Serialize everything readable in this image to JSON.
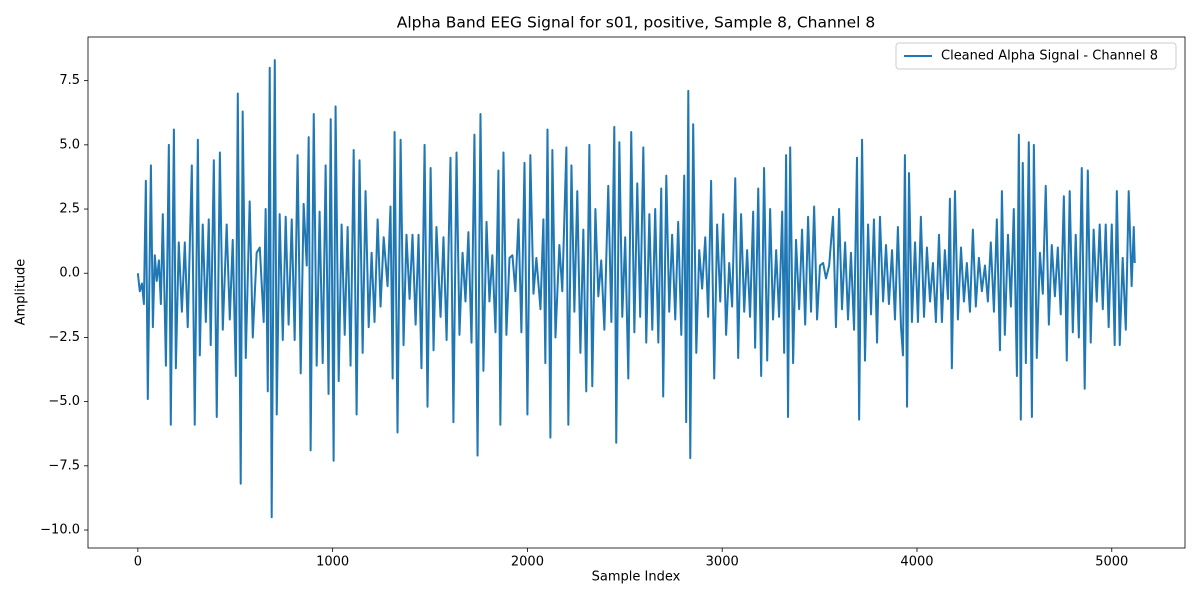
{
  "chart_data": {
    "type": "line",
    "title": "Alpha Band EEG Signal for s01, positive, Sample 8, Channel 8",
    "x_label": "Sample Index",
    "y_label": "Amplitude",
    "xlim": [
      -256,
      5376
    ],
    "ylim": [
      -10.7,
      9.2
    ],
    "xticks": [
      0,
      1000,
      2000,
      3000,
      4000,
      5000
    ],
    "yticks": [
      {
        "value": -10,
        "label": "−10.0"
      },
      {
        "value": -7.5,
        "label": "−7.5"
      },
      {
        "value": -5,
        "label": "−5.0"
      },
      {
        "value": -2.5,
        "label": "−2.5"
      },
      {
        "value": 0,
        "label": "0.0"
      },
      2.5,
      {
        "value": 5,
        "label": "5.0"
      },
      7.5
    ],
    "legend": "upper right",
    "x": [
      0,
      10,
      21,
      31,
      41,
      51,
      67,
      77,
      87,
      97,
      108,
      118,
      128,
      144,
      159,
      169,
      185,
      195,
      210,
      226,
      241,
      256,
      277,
      292,
      308,
      318,
      333,
      349,
      364,
      374,
      390,
      405,
      421,
      436,
      456,
      472,
      487,
      503,
      513,
      528,
      538,
      554,
      574,
      590,
      610,
      626,
      646,
      656,
      667,
      677,
      687,
      703,
      713,
      728,
      744,
      759,
      774,
      790,
      805,
      820,
      836,
      851,
      867,
      877,
      887,
      903,
      918,
      933,
      949,
      964,
      979,
      990,
      1005,
      1015,
      1031,
      1046,
      1062,
      1077,
      1092,
      1108,
      1123,
      1138,
      1154,
      1169,
      1185,
      1200,
      1215,
      1231,
      1246,
      1262,
      1282,
      1297,
      1308,
      1318,
      1333,
      1349,
      1364,
      1379,
      1395,
      1410,
      1426,
      1441,
      1456,
      1472,
      1487,
      1503,
      1518,
      1533,
      1554,
      1569,
      1585,
      1605,
      1620,
      1636,
      1651,
      1667,
      1682,
      1697,
      1713,
      1728,
      1744,
      1759,
      1774,
      1790,
      1805,
      1820,
      1836,
      1851,
      1861,
      1877,
      1892,
      1908,
      1923,
      1938,
      1954,
      1969,
      1985,
      2000,
      2015,
      2031,
      2046,
      2067,
      2082,
      2092,
      2103,
      2118,
      2128,
      2144,
      2164,
      2179,
      2200,
      2210,
      2226,
      2241,
      2256,
      2272,
      2287,
      2302,
      2318,
      2333,
      2349,
      2364,
      2379,
      2395,
      2415,
      2431,
      2446,
      2456,
      2472,
      2487,
      2502,
      2518,
      2533,
      2549,
      2564,
      2579,
      2595,
      2610,
      2626,
      2641,
      2656,
      2672,
      2687,
      2697,
      2713,
      2728,
      2743,
      2759,
      2774,
      2790,
      2805,
      2815,
      2826,
      2836,
      2851,
      2867,
      2882,
      2897,
      2913,
      2928,
      2943,
      2959,
      2974,
      2990,
      3005,
      3020,
      3036,
      3051,
      3067,
      3082,
      3097,
      3113,
      3128,
      3143,
      3159,
      3169,
      3185,
      3200,
      3215,
      3231,
      3246,
      3261,
      3277,
      3292,
      3308,
      3318,
      3328,
      3338,
      3349,
      3364,
      3379,
      3395,
      3410,
      3426,
      3441,
      3456,
      3472,
      3487,
      3502,
      3518,
      3533,
      3549,
      3569,
      3584,
      3600,
      3615,
      3631,
      3646,
      3661,
      3677,
      3692,
      3703,
      3718,
      3733,
      3749,
      3764,
      3779,
      3795,
      3810,
      3826,
      3841,
      3856,
      3872,
      3887,
      3902,
      3918,
      3928,
      3938,
      3949,
      3959,
      3974,
      3990,
      4005,
      4020,
      4036,
      4051,
      4067,
      4082,
      4097,
      4113,
      4128,
      4143,
      4159,
      4169,
      4179,
      4195,
      4210,
      4226,
      4241,
      4256,
      4272,
      4287,
      4302,
      4318,
      4333,
      4349,
      4364,
      4379,
      4395,
      4410,
      4426,
      4436,
      4451,
      4467,
      4482,
      4497,
      4513,
      4523,
      4533,
      4543,
      4559,
      4574,
      4590,
      4600,
      4615,
      4631,
      4646,
      4661,
      4677,
      4692,
      4708,
      4723,
      4738,
      4754,
      4769,
      4784,
      4800,
      4815,
      4831,
      4846,
      4861,
      4877,
      4892,
      4907,
      4923,
      4938,
      4954,
      4969,
      4984,
      5000,
      5015,
      5026,
      5041,
      5056,
      5072,
      5087,
      5102,
      5113,
      5118
    ],
    "series": [
      {
        "name": "Cleaned Alpha Signal - Channel 8",
        "color": "#1f77b4",
        "values": [
          0.0,
          -0.7,
          -0.4,
          -1.2,
          3.6,
          -4.9,
          4.2,
          -2.1,
          0.7,
          -0.3,
          0.5,
          -1.2,
          2.3,
          -3.6,
          5.0,
          -5.9,
          5.6,
          -3.7,
          1.2,
          -1.5,
          1.2,
          -2.1,
          4.2,
          -5.9,
          5.2,
          -3.2,
          1.9,
          -1.9,
          2.1,
          -2.8,
          4.4,
          -5.6,
          4.7,
          -2.2,
          1.9,
          -1.8,
          1.3,
          -4.0,
          7.0,
          -8.2,
          6.3,
          -3.3,
          2.8,
          -2.5,
          0.8,
          1.0,
          -1.9,
          2.5,
          -4.6,
          8.0,
          -9.5,
          8.3,
          -5.5,
          2.3,
          -2.6,
          2.2,
          -2.0,
          2.1,
          -2.6,
          4.6,
          -3.9,
          2.7,
          0.3,
          5.3,
          -6.9,
          6.2,
          -3.6,
          2.4,
          -3.5,
          4.2,
          -4.7,
          6.0,
          -7.3,
          6.5,
          -4.2,
          1.9,
          -2.4,
          1.8,
          -3.6,
          4.8,
          -5.5,
          4.4,
          -3.1,
          3.2,
          -2.1,
          0.8,
          -1.9,
          2.1,
          -1.3,
          1.4,
          -0.5,
          2.6,
          -4.1,
          5.5,
          -6.2,
          5.2,
          -2.8,
          1.5,
          -1.0,
          1.5,
          -2.0,
          1.5,
          -3.7,
          5.0,
          -5.2,
          4.1,
          -3.0,
          1.8,
          -1.7,
          1.4,
          -2.6,
          4.5,
          -5.8,
          4.7,
          -2.4,
          0.8,
          -1.1,
          1.6,
          -2.7,
          5.4,
          -7.1,
          6.2,
          -3.8,
          2.0,
          -1.1,
          0.7,
          -2.3,
          4.0,
          -5.9,
          4.7,
          -2.4,
          0.6,
          0.7,
          -0.7,
          2.1,
          -2.3,
          4.3,
          -5.5,
          4.6,
          -0.8,
          0.6,
          -1.4,
          2.1,
          -3.5,
          5.6,
          -6.4,
          4.8,
          -2.5,
          1.1,
          -0.7,
          4.9,
          -5.9,
          4.2,
          -1.5,
          3.2,
          -3.1,
          1.7,
          -4.6,
          5.0,
          -4.4,
          2.5,
          -0.9,
          0.5,
          -2.2,
          3.4,
          -1.9,
          5.7,
          -6.6,
          5.1,
          -1.7,
          1.4,
          -4.1,
          5.5,
          -2.3,
          3.5,
          -1.7,
          4.9,
          -2.7,
          2.3,
          -2.2,
          2.5,
          -2.7,
          3.3,
          -4.8,
          3.8,
          -1.5,
          1.5,
          -1.8,
          2.0,
          -2.4,
          3.8,
          -5.8,
          7.1,
          -7.2,
          5.8,
          -3.1,
          0.9,
          -0.6,
          1.4,
          -1.7,
          3.6,
          -4.1,
          1.9,
          -1.1,
          2.3,
          -2.4,
          0.4,
          -1.3,
          3.7,
          -3.3,
          2.3,
          -1.5,
          0.9,
          -1.7,
          2.4,
          -2.9,
          3.3,
          -4.0,
          4.1,
          -3.4,
          2.5,
          -1.8,
          0.9,
          -1.7,
          2.4,
          -3.1,
          4.6,
          -5.6,
          4.9,
          -3.5,
          1.3,
          -1.4,
          1.7,
          -2.0,
          2.2,
          -1.5,
          2.6,
          -1.8,
          0.3,
          0.4,
          -0.2,
          0.3,
          2.2,
          -2.1,
          2.5,
          -1.4,
          1.2,
          -1.8,
          0.8,
          -2.2,
          4.5,
          -5.7,
          5.2,
          -3.4,
          1.9,
          -1.6,
          2.1,
          -2.7,
          2.2,
          -1.1,
          1.1,
          -1.2,
          0.9,
          -1.8,
          1.8,
          -2.1,
          -3.2,
          4.6,
          -5.2,
          3.9,
          -1.9,
          1.2,
          -1.9,
          2.2,
          -1.7,
          1.0,
          -1.1,
          0.4,
          -1.9,
          1.5,
          -1.9,
          0.9,
          -1.0,
          2.9,
          -3.7,
          3.2,
          -1.8,
          1.0,
          -1.1,
          0.4,
          -1.5,
          1.7,
          -1.3,
          0.6,
          -0.7,
          0.3,
          -1.1,
          1.2,
          -1.5,
          2.1,
          -3.0,
          3.2,
          -2.4,
          1.5,
          -1.3,
          2.5,
          -4.0,
          5.4,
          -5.7,
          4.3,
          -3.5,
          5.1,
          -5.6,
          5.0,
          -3.3,
          0.8,
          -0.8,
          3.4,
          -2.0,
          1.1,
          -0.9,
          1.0,
          -1.6,
          3.0,
          -3.4,
          3.2,
          -2.3,
          1.5,
          -2.5,
          4.1,
          -4.5,
          4.0,
          -2.7,
          1.7,
          -1.1,
          1.9,
          -1.4,
          1.9,
          -2.1,
          1.9,
          -2.8,
          3.2,
          -2.8,
          0.6,
          -2.2,
          3.2,
          -0.5,
          1.8,
          0.4
        ]
      }
    ]
  }
}
